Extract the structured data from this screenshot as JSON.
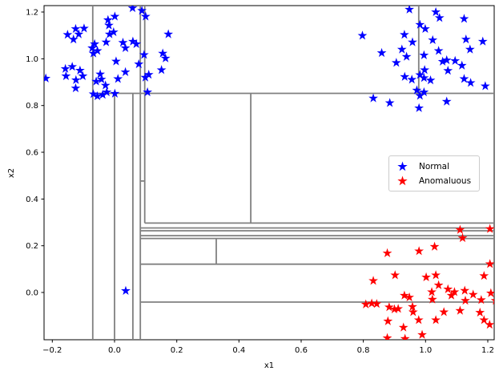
{
  "chart_data": {
    "type": "scatter",
    "title": "",
    "xlabel": "x1",
    "ylabel": "x2",
    "xlim": [
      -0.2266,
      1.2207
    ],
    "ylim": [
      -0.2023,
      1.2276
    ],
    "grid": false,
    "legend_position": "center-right",
    "xticks": {
      "values": [
        -0.2,
        0.0,
        0.2,
        0.4,
        0.6,
        0.8,
        1.0,
        1.2
      ],
      "labels": [
        "−0.2",
        "0.0",
        "0.2",
        "0.4",
        "0.6",
        "0.8",
        "1.0",
        "1.2"
      ]
    },
    "yticks": {
      "values": [
        0.0,
        0.2,
        0.4,
        0.6,
        0.8,
        1.0,
        1.2
      ],
      "labels": [
        "0.0",
        "0.2",
        "0.4",
        "0.6",
        "0.8",
        "1.0",
        "1.2"
      ]
    },
    "series": [
      {
        "name": "Normal",
        "color": "#0000ff",
        "marker": "star",
        "points": [
          [
            -0.221,
            0.916
          ],
          [
            -0.125,
            1.128
          ],
          [
            -0.151,
            1.103
          ],
          [
            -0.115,
            1.105
          ],
          [
            -0.132,
            1.083
          ],
          [
            -0.098,
            1.13
          ],
          [
            -0.158,
            0.957
          ],
          [
            -0.136,
            0.966
          ],
          [
            -0.111,
            0.95
          ],
          [
            -0.156,
            0.926
          ],
          [
            -0.124,
            0.909
          ],
          [
            -0.102,
            0.926
          ],
          [
            -0.125,
            0.874
          ],
          [
            -0.072,
            1.046
          ],
          [
            -0.064,
            1.063
          ],
          [
            -0.068,
            1.023
          ],
          [
            -0.055,
            1.034
          ],
          [
            -0.027,
            1.071
          ],
          [
            -0.021,
            1.166
          ],
          [
            -0.018,
            1.143
          ],
          [
            0.001,
            1.181
          ],
          [
            -0.003,
            1.114
          ],
          [
            -0.016,
            1.105
          ],
          [
            -0.046,
            0.934
          ],
          [
            -0.042,
            0.912
          ],
          [
            -0.059,
            0.903
          ],
          [
            -0.029,
            0.886
          ],
          [
            -0.068,
            0.849
          ],
          [
            -0.055,
            0.84
          ],
          [
            -0.038,
            0.846
          ],
          [
            -0.025,
            0.857
          ],
          [
            0.001,
            0.851
          ],
          [
            0.027,
            1.069
          ],
          [
            0.035,
            1.046
          ],
          [
            0.059,
            1.074
          ],
          [
            0.07,
            1.063
          ],
          [
            0.005,
            0.989
          ],
          [
            0.035,
            0.943
          ],
          [
            0.011,
            0.914
          ],
          [
            0.078,
            0.977
          ],
          [
            0.095,
            1.017
          ],
          [
            0.1,
            1.181
          ],
          [
            0.058,
            1.217
          ],
          [
            0.088,
            1.206
          ],
          [
            0.11,
            0.932
          ],
          [
            0.099,
            0.92
          ],
          [
            0.106,
            0.857
          ],
          [
            0.173,
            1.105
          ],
          [
            0.155,
            1.023
          ],
          [
            0.164,
            1.002
          ],
          [
            0.151,
            0.952
          ],
          [
            0.948,
            1.211
          ],
          [
            0.982,
            1.146
          ],
          [
            0.999,
            1.128
          ],
          [
            1.033,
            1.2
          ],
          [
            1.045,
            1.175
          ],
          [
            1.124,
            1.171
          ],
          [
            0.797,
            1.099
          ],
          [
            0.932,
            1.103
          ],
          [
            0.958,
            1.071
          ],
          [
            1.023,
            1.08
          ],
          [
            1.13,
            1.083
          ],
          [
            1.184,
            1.074
          ],
          [
            0.859,
            1.025
          ],
          [
            0.924,
            1.04
          ],
          [
            0.939,
            1.009
          ],
          [
            0.995,
            1.015
          ],
          [
            1.042,
            1.034
          ],
          [
            1.055,
            0.988
          ],
          [
            1.068,
            0.994
          ],
          [
            1.095,
            0.991
          ],
          [
            1.117,
            0.971
          ],
          [
            1.143,
            1.04
          ],
          [
            0.906,
            0.983
          ],
          [
            0.933,
            0.923
          ],
          [
            0.956,
            0.911
          ],
          [
            0.982,
            0.931
          ],
          [
            0.997,
            0.952
          ],
          [
            0.995,
            0.918
          ],
          [
            1.016,
            0.908
          ],
          [
            1.072,
            0.949
          ],
          [
            1.124,
            0.914
          ],
          [
            1.145,
            0.897
          ],
          [
            1.192,
            0.883
          ],
          [
            0.995,
            0.857
          ],
          [
            0.982,
            0.842
          ],
          [
            0.832,
            0.831
          ],
          [
            0.885,
            0.811
          ],
          [
            0.979,
            0.789
          ],
          [
            1.068,
            0.817
          ],
          [
            0.972,
            0.865
          ],
          [
            0.036,
            0.007
          ]
        ]
      },
      {
        "name": "Anomaluous",
        "color": "#ff0000",
        "marker": "star",
        "points": [
          [
            1.111,
            0.268
          ],
          [
            1.207,
            0.272
          ],
          [
            1.119,
            0.233
          ],
          [
            0.979,
            0.177
          ],
          [
            0.877,
            0.168
          ],
          [
            1.029,
            0.196
          ],
          [
            1.207,
            0.122
          ],
          [
            0.902,
            0.074
          ],
          [
            0.832,
            0.05
          ],
          [
            1.002,
            0.065
          ],
          [
            1.033,
            0.074
          ],
          [
            1.042,
            0.031
          ],
          [
            0.932,
            -0.013
          ],
          [
            0.948,
            -0.021
          ],
          [
            1.02,
            0.002
          ],
          [
            1.022,
            -0.03
          ],
          [
            1.072,
            0.014
          ],
          [
            1.083,
            -0.013
          ],
          [
            1.093,
            0.002
          ],
          [
            1.126,
            0.008
          ],
          [
            1.153,
            -0.009
          ],
          [
            1.179,
            -0.032
          ],
          [
            1.188,
            0.071
          ],
          [
            1.21,
            -0.003
          ],
          [
            0.808,
            -0.051
          ],
          [
            0.827,
            -0.047
          ],
          [
            0.843,
            -0.049
          ],
          [
            0.883,
            -0.063
          ],
          [
            0.9,
            -0.072
          ],
          [
            0.912,
            -0.07
          ],
          [
            0.958,
            -0.061
          ],
          [
            0.96,
            -0.084
          ],
          [
            0.978,
            -0.118
          ],
          [
            0.879,
            -0.123
          ],
          [
            0.929,
            -0.15
          ],
          [
            0.989,
            -0.181
          ],
          [
            0.877,
            -0.195
          ],
          [
            0.934,
            -0.198
          ],
          [
            1.033,
            -0.118
          ],
          [
            1.059,
            -0.084
          ],
          [
            1.111,
            -0.078
          ],
          [
            1.128,
            -0.035
          ],
          [
            1.175,
            -0.086
          ],
          [
            1.188,
            -0.118
          ],
          [
            1.206,
            -0.138
          ],
          [
            1.225,
            -0.035
          ]
        ]
      }
    ],
    "partitions": {
      "color": "#808080",
      "segments": [
        [
          -0.07,
          -0.2023,
          -0.07,
          1.2276
        ],
        [
          0.0,
          -0.2023,
          0.0,
          0.852
        ],
        [
          0.059,
          -0.2023,
          0.059,
          0.852
        ],
        [
          0.083,
          -0.2023,
          0.083,
          1.2276
        ],
        [
          0.097,
          0.297,
          0.097,
          1.2276
        ],
        [
          0.438,
          0.297,
          0.438,
          0.852
        ],
        [
          0.327,
          0.121,
          0.327,
          0.231
        ],
        [
          0.978,
          0.852,
          0.978,
          1.2276
        ],
        [
          -0.07,
          0.852,
          1.2207,
          0.852
        ],
        [
          0.083,
          0.477,
          0.097,
          0.477
        ],
        [
          0.097,
          0.297,
          1.2207,
          0.297
        ],
        [
          0.083,
          0.276,
          1.2207,
          0.276
        ],
        [
          0.083,
          0.264,
          1.2207,
          0.264
        ],
        [
          0.083,
          0.243,
          1.2207,
          0.243
        ],
        [
          0.083,
          0.231,
          1.2207,
          0.231
        ],
        [
          0.083,
          0.121,
          1.2207,
          0.121
        ],
        [
          0.083,
          -0.041,
          1.2207,
          -0.041
        ]
      ]
    }
  }
}
